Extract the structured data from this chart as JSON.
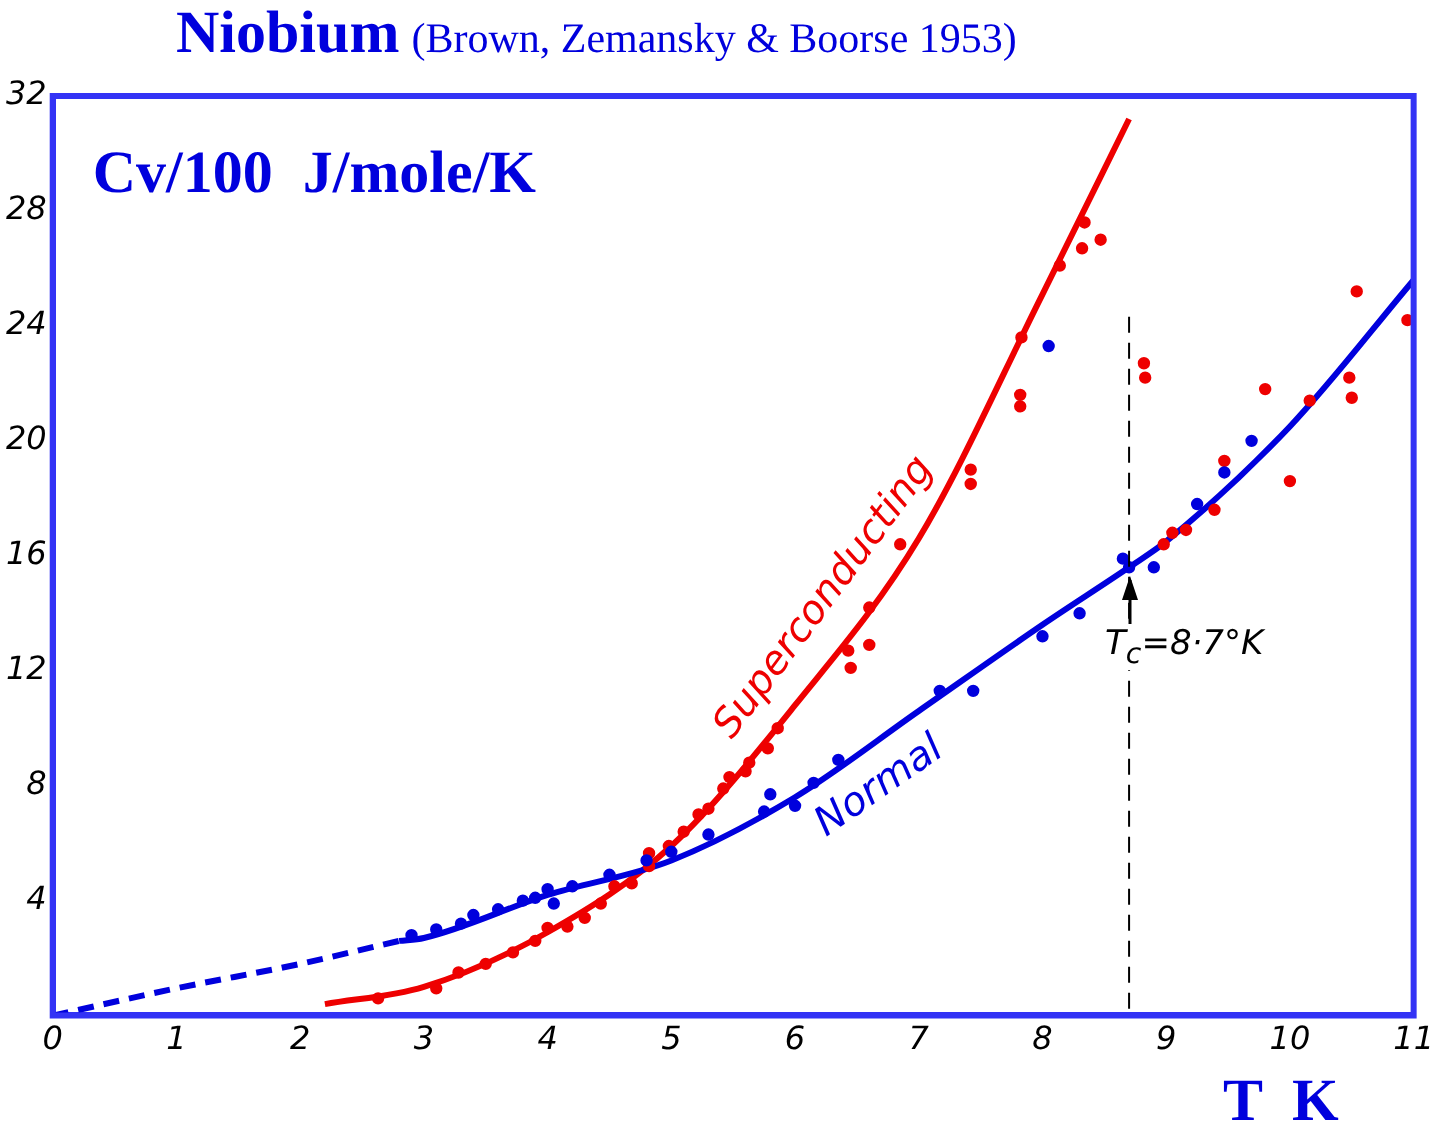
{
  "chart_data": {
    "type": "line",
    "title": "Niobium",
    "subtitle": "(Brown, Zemansky & Boorse 1953)",
    "xlabel": "T  K",
    "ylabel": "Cv/100  J/mole/K",
    "xlim": [
      0,
      11
    ],
    "xticks": [
      0,
      1,
      2,
      3,
      4,
      5,
      6,
      7,
      8,
      9,
      10,
      11
    ],
    "ylim": [
      0,
      32
    ],
    "yticks": [
      {
        "value": 0,
        "label": null
      },
      4,
      8,
      12,
      16,
      20,
      24,
      28,
      32
    ],
    "grid": false,
    "legend": false,
    "ref_lines": [
      {
        "axis": "x",
        "value": 8.7,
        "line_style": "dashed",
        "color": "#000000"
      }
    ],
    "annotations": [
      {
        "text": "T$_{c}$=8·7°K",
        "x": 8.7,
        "y": 15.6
      }
    ],
    "series": [
      {
        "color": "#0000dd",
        "line_style": "dashed",
        "marker": "none",
        "x": [
          0,
          1,
          2,
          2.8
        ],
        "values": [
          0,
          0.95,
          1.8,
          2.6
        ]
      },
      {
        "name": "Normal",
        "color": "#0000dd",
        "line_style": "solid",
        "marker": "none",
        "x": [
          2.8,
          3,
          4,
          5,
          6,
          7,
          8,
          8.7,
          9,
          10,
          11
        ],
        "values": [
          2.6,
          2.7,
          4.2,
          5.4,
          7.6,
          10.6,
          13.6,
          15.6,
          16.5,
          20.5,
          25.6
        ]
      },
      {
        "name": "Superconducting",
        "color": "#ee0000",
        "line_style": "solid",
        "marker": "none",
        "x": [
          2.2,
          3,
          4,
          5,
          6,
          7,
          8,
          8.7
        ],
        "values": [
          0.4,
          1.0,
          2.9,
          5.9,
          10.8,
          16.6,
          25.1,
          31.2
        ]
      },
      {
        "type": "scatter",
        "color": "#0000dd",
        "marker": "circle",
        "x": [
          2.9,
          3.1,
          3.3,
          3.4,
          3.6,
          3.8,
          3.9,
          4.0,
          4.05,
          4.2,
          4.5,
          4.8,
          5.0,
          5.3,
          5.75,
          5.8,
          6.0,
          6.15,
          6.35,
          7.17,
          7.44,
          8.0,
          8.3,
          8.65,
          8.7,
          8.9,
          9.25,
          9.47,
          9.69,
          8.05
        ],
        "values": [
          2.8,
          3.0,
          3.2,
          3.5,
          3.7,
          4.0,
          4.1,
          4.4,
          3.9,
          4.5,
          4.9,
          5.4,
          5.7,
          6.3,
          7.1,
          7.7,
          7.3,
          8.1,
          8.9,
          11.3,
          11.3,
          13.2,
          14.0,
          15.9,
          15.6,
          15.6,
          17.8,
          18.9,
          20.0,
          23.3
        ]
      },
      {
        "type": "scatter",
        "color": "#ee0000",
        "marker": "circle",
        "x": [
          2.63,
          3.1,
          3.28,
          3.5,
          3.72,
          3.9,
          4.0,
          4.16,
          4.3,
          4.43,
          4.54,
          4.68,
          4.82,
          4.82,
          4.98,
          5.1,
          5.22,
          5.3,
          5.42,
          5.47,
          5.6,
          5.63,
          5.78,
          5.86,
          6.43,
          6.45,
          6.6,
          6.6,
          6.85,
          7.42,
          7.42,
          7.83,
          7.82,
          7.82,
          8.14,
          8.32,
          8.34,
          8.47,
          8.82,
          8.83,
          8.98,
          9.05,
          9.16,
          9.39,
          9.47,
          9.8,
          10.0,
          10.16,
          10.48,
          10.5,
          10.54,
          10.95
        ],
        "values": [
          0.6,
          0.95,
          1.5,
          1.8,
          2.2,
          2.6,
          3.05,
          3.1,
          3.4,
          3.9,
          4.5,
          4.6,
          5.2,
          5.65,
          5.9,
          6.4,
          7.0,
          7.2,
          7.9,
          8.3,
          8.5,
          8.8,
          9.3,
          10.0,
          12.7,
          12.1,
          12.9,
          14.2,
          16.4,
          19.0,
          18.5,
          23.6,
          21.6,
          21.2,
          26.1,
          26.7,
          27.6,
          27.0,
          22.7,
          22.2,
          16.4,
          16.8,
          16.9,
          17.6,
          19.3,
          21.8,
          18.6,
          21.4,
          22.2,
          21.5,
          25.2,
          24.2
        ]
      }
    ]
  }
}
